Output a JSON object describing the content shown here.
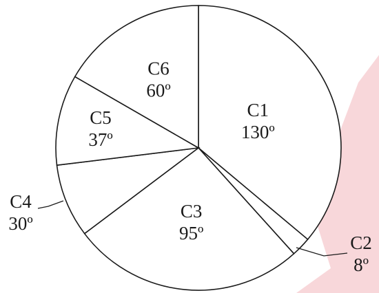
{
  "chart_data": {
    "type": "pie",
    "title": "",
    "slices": [
      {
        "label": "C1",
        "value": 130,
        "value_label": "130º"
      },
      {
        "label": "C2",
        "value": 8,
        "value_label": "8º"
      },
      {
        "label": "C3",
        "value": 95,
        "value_label": "95º"
      },
      {
        "label": "C4",
        "value": 30,
        "value_label": "30º"
      },
      {
        "label": "C5",
        "value": 37,
        "value_label": "37º"
      },
      {
        "label": "C6",
        "value": 60,
        "value_label": "60º"
      }
    ],
    "unit": "degrees",
    "start": "top",
    "direction": "clockwise",
    "fill": "#ffffff",
    "stroke": "#1a1a1a"
  }
}
